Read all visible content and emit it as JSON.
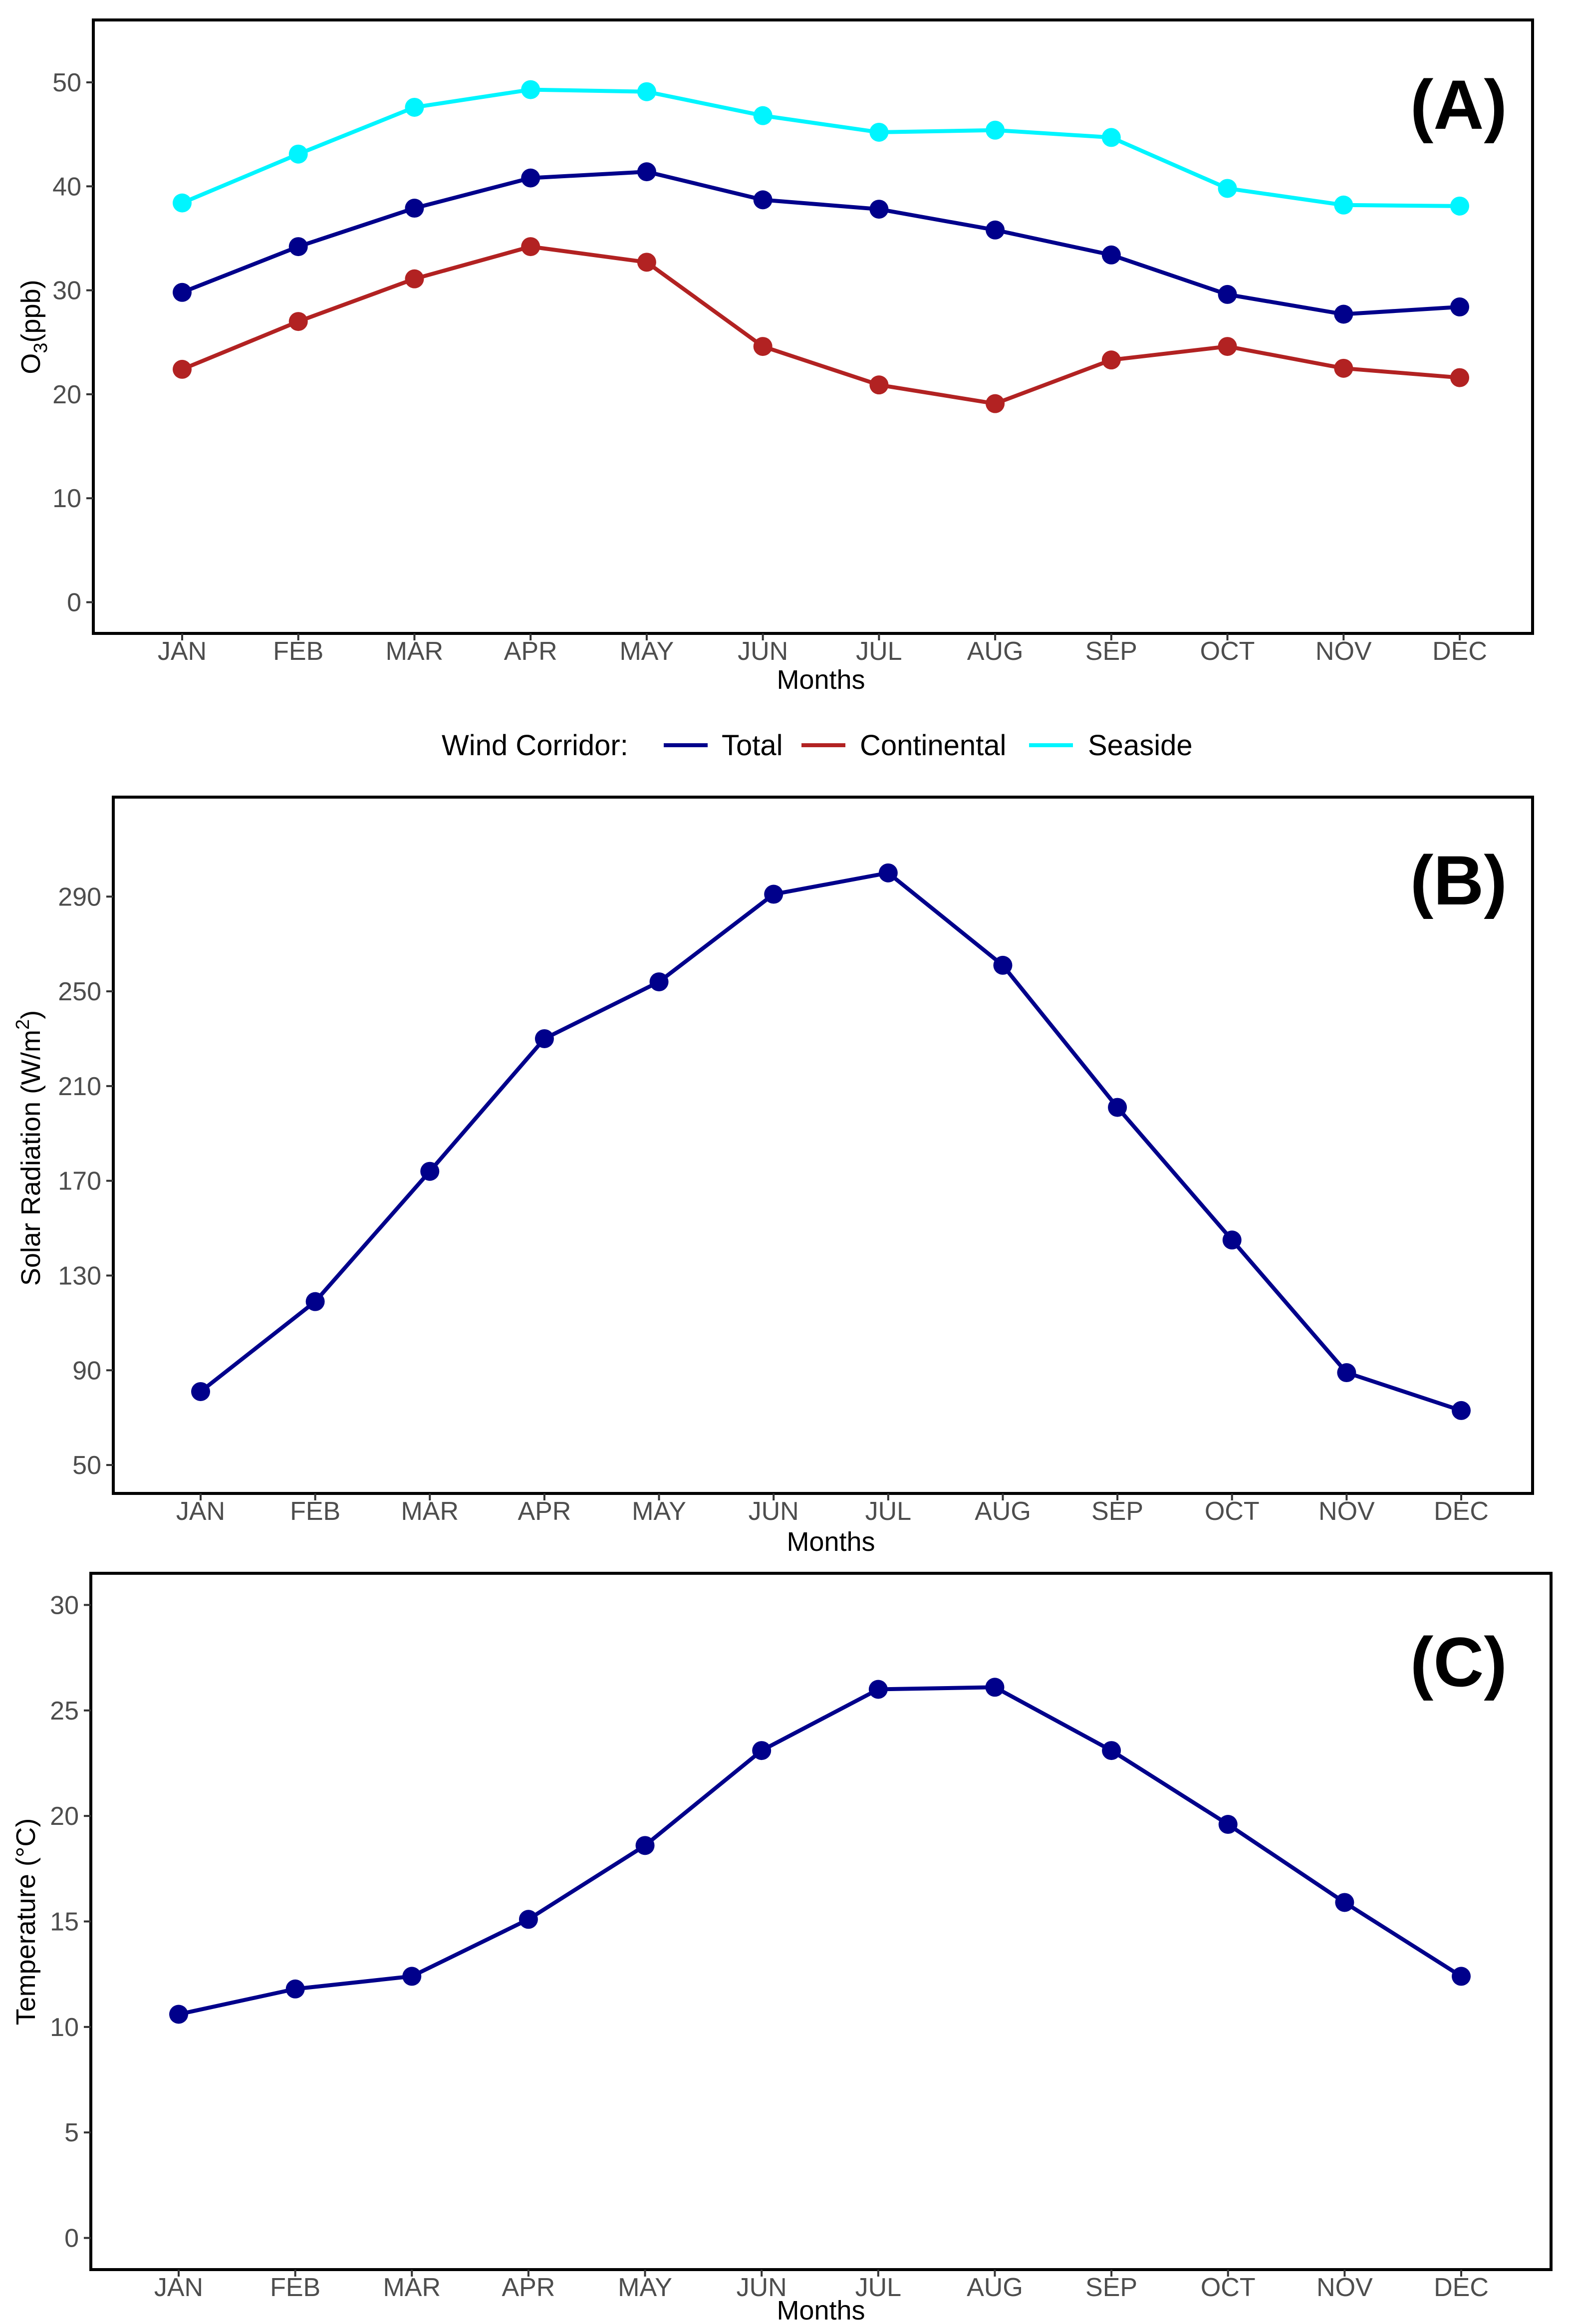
{
  "legend": {
    "title": "Wind Corridor:",
    "entries": [
      {
        "label": "Total",
        "color": "#00008B"
      },
      {
        "label": "Continental",
        "color": "#B22222"
      },
      {
        "label": "Seaside",
        "color": "#00F5FF"
      }
    ]
  },
  "chart_data": [
    {
      "id": "A",
      "type": "line",
      "panel_label": "(A)",
      "xlabel": "Months",
      "ylabel_main": "O",
      "ylabel_sub": "3",
      "ylabel_rest": "(ppb)",
      "ylim": [
        -3,
        56
      ],
      "yticks": [
        0,
        10,
        20,
        30,
        40,
        50
      ],
      "categories": [
        "JAN",
        "FEB",
        "MAR",
        "APR",
        "MAY",
        "JUN",
        "JUL",
        "AUG",
        "SEP",
        "OCT",
        "NOV",
        "DEC"
      ],
      "series": [
        {
          "name": "Seaside",
          "color": "#00F5FF",
          "values": [
            38.4,
            43.1,
            47.6,
            49.3,
            49.1,
            46.8,
            45.2,
            45.4,
            44.7,
            39.8,
            38.2,
            38.1
          ]
        },
        {
          "name": "Total",
          "color": "#00008B",
          "values": [
            29.8,
            34.2,
            37.9,
            40.8,
            41.4,
            38.7,
            37.8,
            35.8,
            33.4,
            29.6,
            27.7,
            28.4
          ]
        },
        {
          "name": "Continental",
          "color": "#B22222",
          "values": [
            22.4,
            27.0,
            31.1,
            34.2,
            32.7,
            24.6,
            20.9,
            19.1,
            23.3,
            24.6,
            22.5,
            21.6
          ]
        }
      ]
    },
    {
      "id": "B",
      "type": "line",
      "panel_label": "(B)",
      "xlabel": "Months",
      "ylabel_main": "Solar Radiation (W/m",
      "ylabel_sup": "2",
      "ylabel_rest": ")",
      "ylim": [
        38,
        332
      ],
      "yticks": [
        50,
        90,
        130,
        170,
        210,
        250,
        290
      ],
      "categories": [
        "JAN",
        "FEB",
        "MAR",
        "APR",
        "MAY",
        "JUN",
        "JUL",
        "AUG",
        "SEP",
        "OCT",
        "NOV",
        "DEC"
      ],
      "series": [
        {
          "name": "Total",
          "color": "#00008B",
          "values": [
            81,
            119,
            174,
            230,
            254,
            291,
            300,
            261,
            201,
            145,
            89,
            73
          ]
        }
      ]
    },
    {
      "id": "C",
      "type": "line",
      "panel_label": "(C)",
      "xlabel": "Months",
      "ylabel_main": "Temperature (°C)",
      "ylim": [
        -1.5,
        31.5
      ],
      "yticks": [
        0,
        5,
        10,
        15,
        20,
        25,
        30
      ],
      "categories": [
        "JAN",
        "FEB",
        "MAR",
        "APR",
        "MAY",
        "JUN",
        "JUL",
        "AUG",
        "SEP",
        "OCT",
        "NOV",
        "DEC"
      ],
      "series": [
        {
          "name": "Total",
          "color": "#00008B",
          "values": [
            10.6,
            11.8,
            12.4,
            15.1,
            18.6,
            23.1,
            26.0,
            26.1,
            23.1,
            19.6,
            15.9,
            12.4
          ]
        }
      ]
    }
  ]
}
